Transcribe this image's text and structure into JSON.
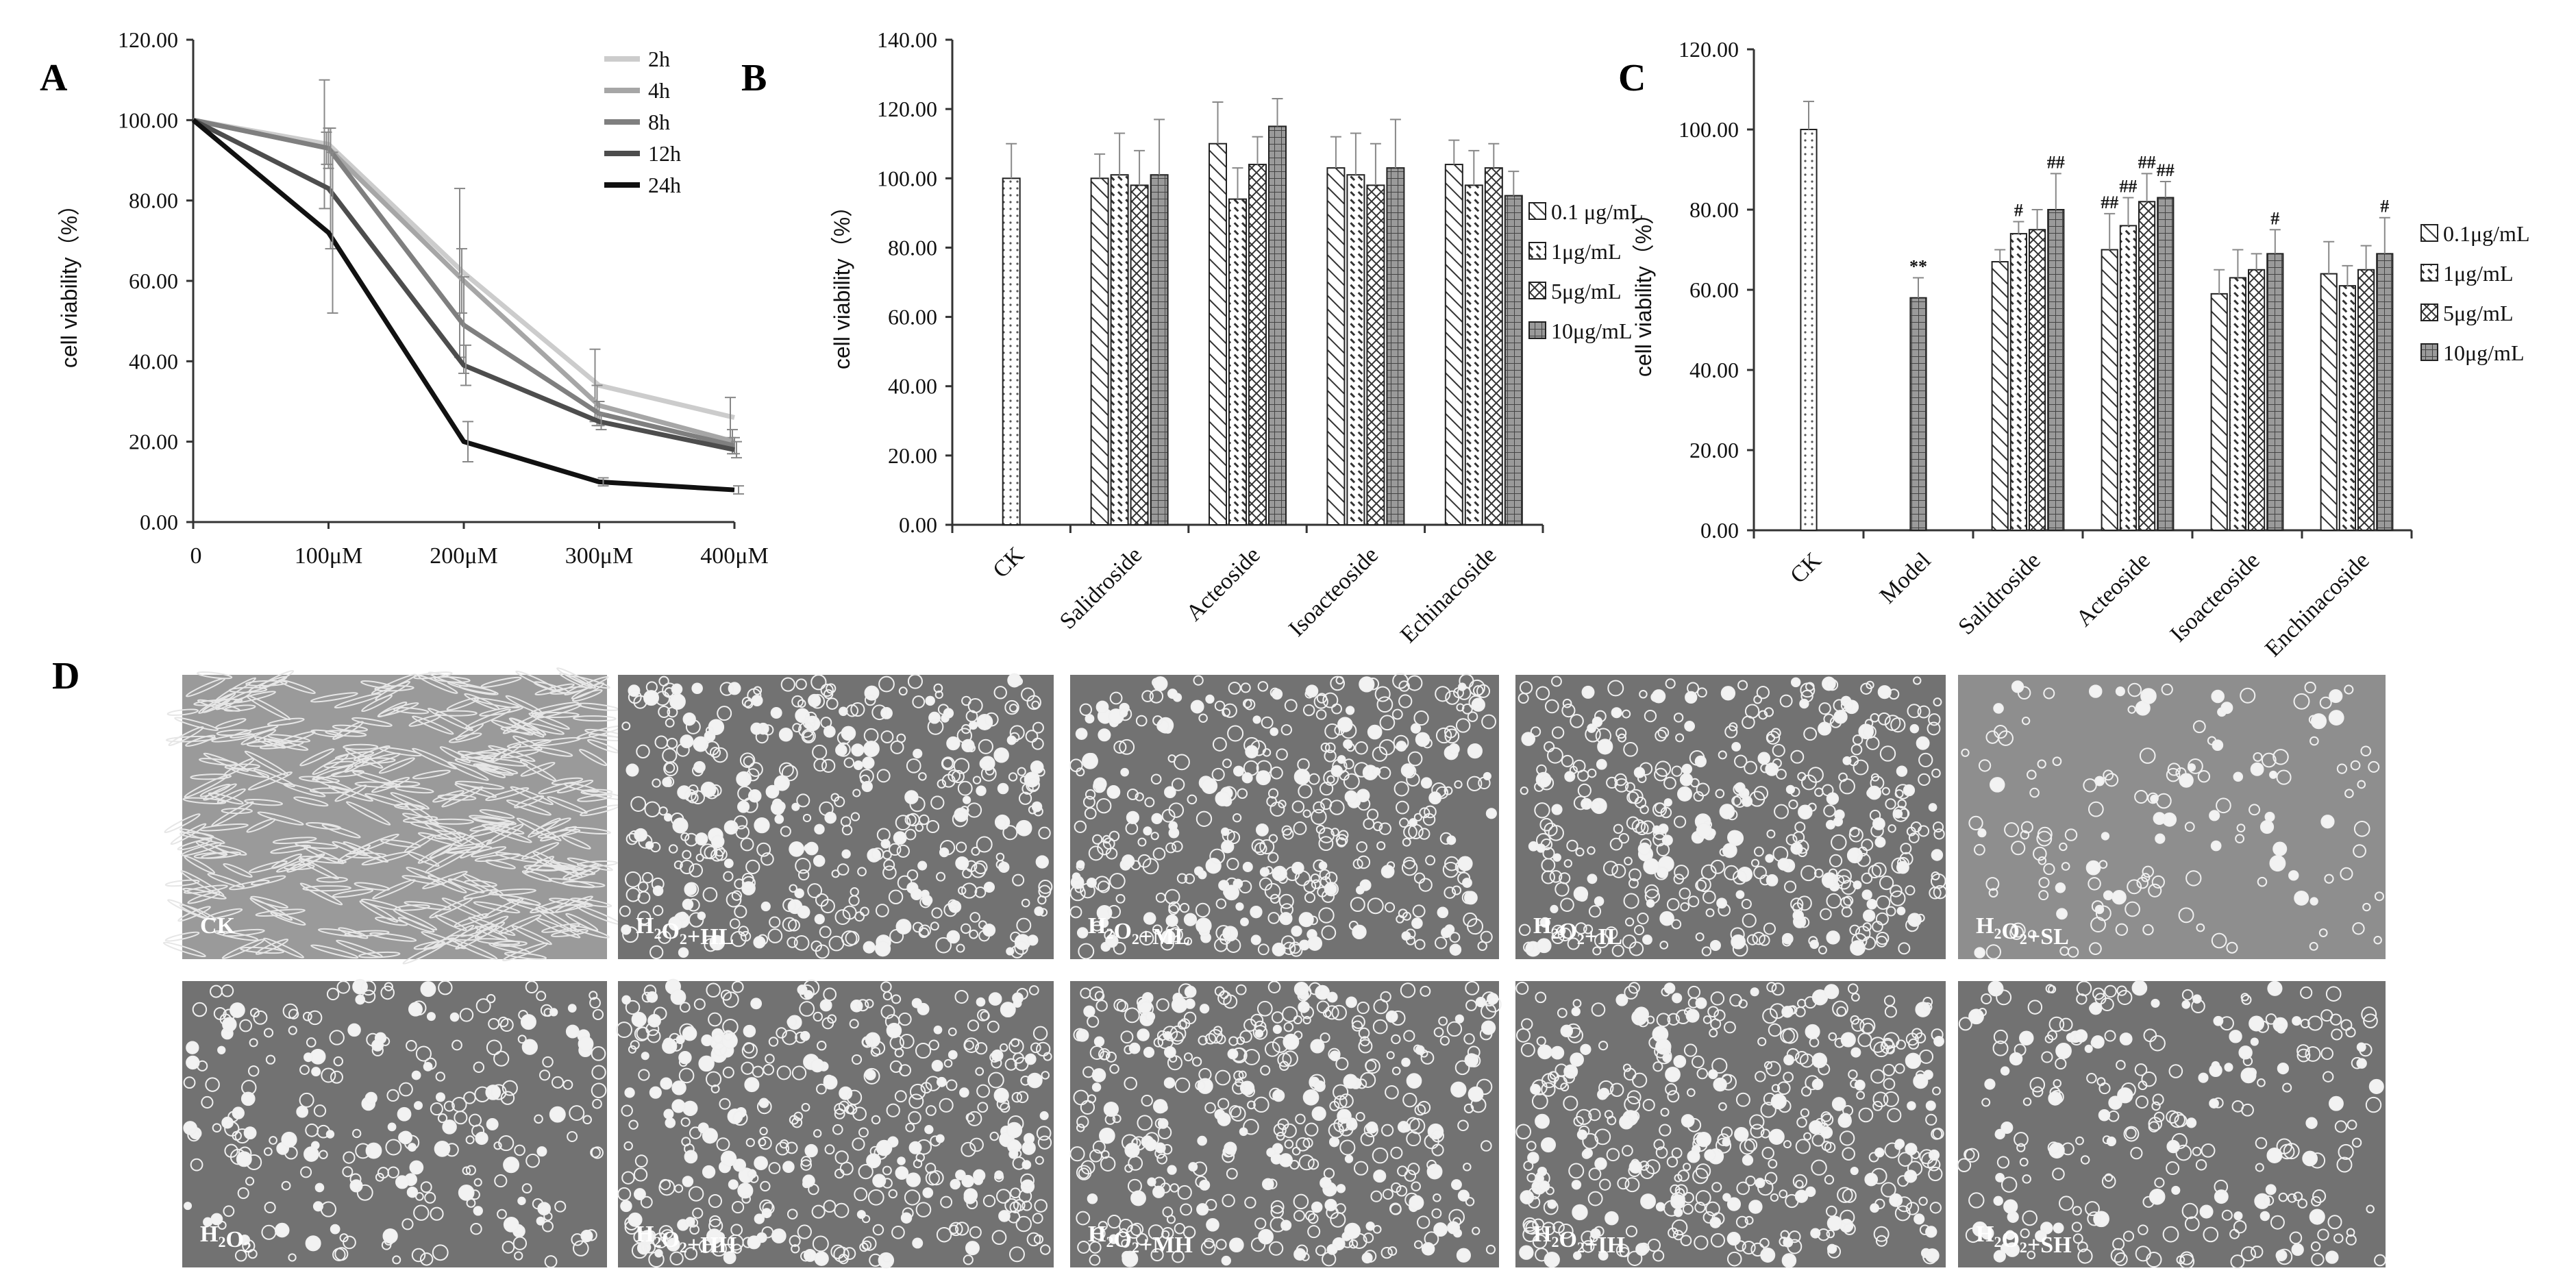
{
  "panel_letters": [
    "A",
    "B",
    "C",
    "D"
  ],
  "chart_data": [
    {
      "panel": "A",
      "type": "line",
      "ylabel": "cell viability（%）",
      "xlabel": "",
      "ylim": [
        0,
        120
      ],
      "y_ticks": [
        "0.00",
        "20.00",
        "40.00",
        "60.00",
        "80.00",
        "100.00",
        "120.00"
      ],
      "categories": [
        "0",
        "100μM",
        "200μM",
        "300μM",
        "400μM"
      ],
      "legend_position": "top-right",
      "grid": false,
      "series": [
        {
          "name": "2h",
          "color": "#cccccc",
          "values": [
            100,
            94,
            62,
            34,
            26
          ],
          "errors": [
            0,
            16,
            21,
            9,
            5
          ]
        },
        {
          "name": "4h",
          "color": "#a6a6a6",
          "values": [
            100,
            93,
            60,
            29,
            20
          ],
          "errors": [
            0,
            4,
            8,
            5,
            3
          ]
        },
        {
          "name": "8h",
          "color": "#7f7f7f",
          "values": [
            100,
            93,
            49,
            27,
            19
          ],
          "errors": [
            0,
            5,
            12,
            3,
            2
          ]
        },
        {
          "name": "12h",
          "color": "#4d4d4d",
          "values": [
            100,
            83,
            39,
            25,
            18
          ],
          "errors": [
            0,
            15,
            5,
            2,
            2
          ]
        },
        {
          "name": "24h",
          "color": "#111111",
          "values": [
            100,
            72,
            20,
            10,
            8
          ],
          "errors": [
            0,
            20,
            5,
            1,
            1
          ]
        }
      ]
    },
    {
      "panel": "B",
      "type": "bar",
      "ylabel": "cell viability（%）",
      "xlabel": "",
      "ylim": [
        0,
        140
      ],
      "y_ticks": [
        "0.00",
        "20.00",
        "40.00",
        "60.00",
        "80.00",
        "100.00",
        "120.00",
        "140.00"
      ],
      "categories": [
        "CK",
        "Salidroside",
        "Acteoside",
        "Isoacteoside",
        "Echinacoside"
      ],
      "legend_position": "right",
      "grid": false,
      "series": [
        {
          "name": "0.1 μg/mL",
          "pattern": "diag",
          "values": [
            null,
            100,
            110,
            103,
            104
          ],
          "errors": [
            null,
            7,
            12,
            9,
            7
          ]
        },
        {
          "name": "1μg/mL",
          "pattern": "dash",
          "values": [
            null,
            101,
            94,
            101,
            98
          ],
          "errors": [
            null,
            12,
            9,
            12,
            10
          ]
        },
        {
          "name": "5μg/mL",
          "pattern": "cross",
          "values": [
            null,
            98,
            104,
            98,
            103
          ],
          "errors": [
            null,
            10,
            8,
            12,
            7
          ]
        },
        {
          "name": "10μg/mL",
          "pattern": "grid",
          "values": [
            null,
            101,
            115,
            103,
            95
          ],
          "errors": [
            null,
            16,
            8,
            14,
            7
          ]
        }
      ],
      "control_bars": [
        {
          "category": "CK",
          "pattern": "dots",
          "value": 100,
          "error": 10
        }
      ]
    },
    {
      "panel": "C",
      "type": "bar",
      "ylabel": "cell viability（%）",
      "xlabel": "",
      "ylim": [
        0,
        120
      ],
      "y_ticks": [
        "0.00",
        "20.00",
        "40.00",
        "60.00",
        "80.00",
        "100.00",
        "120.00"
      ],
      "categories": [
        "CK",
        "Model",
        "Salidroside",
        "Acteoside",
        "Isoacteoside",
        "Enchinacoside"
      ],
      "legend_position": "right",
      "grid": false,
      "series": [
        {
          "name": "0.1μg/mL",
          "pattern": "diag",
          "values": [
            null,
            null,
            67,
            70,
            59,
            64
          ],
          "errors": [
            null,
            null,
            3,
            9,
            6,
            8
          ],
          "labels": [
            null,
            null,
            "",
            "##",
            "",
            ""
          ]
        },
        {
          "name": "1μg/mL",
          "pattern": "dash",
          "values": [
            null,
            null,
            74,
            76,
            63,
            61
          ],
          "errors": [
            null,
            null,
            3,
            7,
            7,
            5
          ],
          "labels": [
            null,
            null,
            "#",
            "##",
            "",
            ""
          ]
        },
        {
          "name": "5μg/mL",
          "pattern": "cross",
          "values": [
            null,
            null,
            75,
            82,
            65,
            65
          ],
          "errors": [
            null,
            null,
            5,
            7,
            4,
            6
          ],
          "labels": [
            null,
            null,
            "",
            "##",
            "",
            ""
          ]
        },
        {
          "name": "10μg/mL",
          "pattern": "grid",
          "values": [
            null,
            null,
            80,
            83,
            69,
            69
          ],
          "errors": [
            null,
            null,
            9,
            4,
            6,
            9
          ],
          "labels": [
            null,
            null,
            "##",
            "##",
            "#",
            "#"
          ]
        }
      ],
      "control_bars": [
        {
          "category": "CK",
          "pattern": "dots",
          "value": 100,
          "error": 7,
          "label": ""
        },
        {
          "category": "Model",
          "pattern": "grid",
          "value": 58,
          "error": 5,
          "label": "**"
        }
      ]
    }
  ],
  "micrographs": {
    "top": [
      {
        "label": "CK",
        "density": "spindle"
      },
      {
        "label": "H2O2+HL",
        "density": "high"
      },
      {
        "label": "H2O2+ML",
        "density": "high"
      },
      {
        "label": "H2O2+IL",
        "density": "high"
      },
      {
        "label": "H2O2+SL",
        "density": "low"
      }
    ],
    "bottom": [
      {
        "label": "H2O2",
        "density": "medium"
      },
      {
        "label": "H2O2+HH",
        "density": "high"
      },
      {
        "label": "H2O2+MH",
        "density": "high"
      },
      {
        "label": "H2O2+IH",
        "density": "high"
      },
      {
        "label": "H2O2+SH",
        "density": "medium"
      }
    ]
  }
}
